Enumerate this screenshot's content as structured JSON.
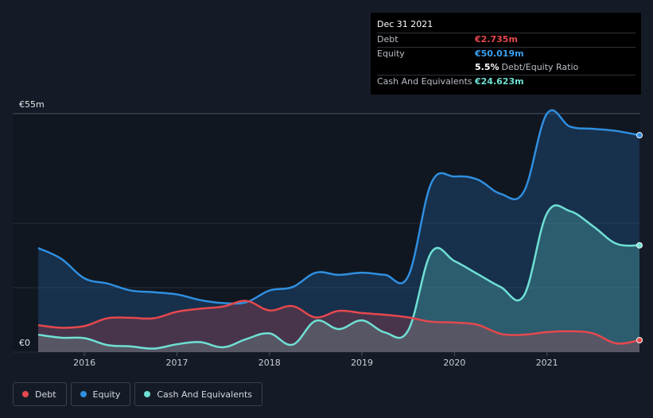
{
  "tooltip": {
    "date": "Dec 31 2021",
    "debt_label": "Debt",
    "debt_value": "€2.735m",
    "equity_label": "Equity",
    "equity_value": "€50.019m",
    "ratio_value": "5.5%",
    "ratio_label": "Debt/Equity Ratio",
    "cash_label": "Cash And Equivalents",
    "cash_value": "€24.623m"
  },
  "colors": {
    "debt": "#e5484d",
    "equity": "#2f8fe0",
    "cash": "#6fe0d4",
    "debt_value": "#e5484d",
    "equity_value": "#3aa0f0",
    "cash_value": "#6fe0d4"
  },
  "legend": {
    "debt": "Debt",
    "equity": "Equity",
    "cash": "Cash And Equivalents"
  },
  "chart_data": {
    "type": "area",
    "y_top_label": "€55m",
    "y_bottom_label": "€0",
    "ylim": [
      0,
      55
    ],
    "xlim": [
      2015.5,
      2022.0
    ],
    "x_ticks": [
      2016,
      2017,
      2018,
      2019,
      2020,
      2021
    ],
    "x_tick_labels": [
      "2016",
      "2017",
      "2018",
      "2019",
      "2020",
      "2021"
    ],
    "grid": true,
    "legend_position": "bottom-left",
    "series": [
      {
        "name": "Equity",
        "x": [
          2015.5,
          2015.75,
          2016.0,
          2016.25,
          2016.5,
          2016.75,
          2017.0,
          2017.25,
          2017.5,
          2017.75,
          2018.0,
          2018.25,
          2018.5,
          2018.75,
          2019.0,
          2019.25,
          2019.5,
          2019.75,
          2020.0,
          2020.25,
          2020.5,
          2020.75,
          2021.0,
          2021.25,
          2021.5,
          2021.75,
          2022.0
        ],
        "values": [
          24.0,
          21.5,
          17.0,
          15.8,
          14.2,
          13.8,
          13.3,
          12.0,
          11.3,
          11.5,
          14.2,
          15.0,
          18.3,
          17.8,
          18.3,
          17.8,
          17.5,
          39.0,
          40.5,
          39.8,
          36.5,
          37.0,
          55.0,
          52.0,
          51.5,
          51.0,
          50.019
        ]
      },
      {
        "name": "Cash And Equivalents",
        "x": [
          2015.5,
          2015.75,
          2016.0,
          2016.25,
          2016.5,
          2016.75,
          2017.0,
          2017.25,
          2017.5,
          2017.75,
          2018.0,
          2018.25,
          2018.5,
          2018.75,
          2019.0,
          2019.25,
          2019.5,
          2019.75,
          2020.0,
          2020.25,
          2020.5,
          2020.75,
          2021.0,
          2021.25,
          2021.5,
          2021.75,
          2022.0
        ],
        "values": [
          4.0,
          3.3,
          3.2,
          1.6,
          1.3,
          0.8,
          1.8,
          2.3,
          1.1,
          3.0,
          4.3,
          1.7,
          7.2,
          5.3,
          7.3,
          4.5,
          5.0,
          23.0,
          21.0,
          18.0,
          15.0,
          13.0,
          32.0,
          32.5,
          29.0,
          25.0,
          24.623
        ]
      },
      {
        "name": "Debt",
        "x": [
          2015.5,
          2015.75,
          2016.0,
          2016.25,
          2016.5,
          2016.75,
          2017.0,
          2017.25,
          2017.5,
          2017.75,
          2018.0,
          2018.25,
          2018.5,
          2018.75,
          2019.0,
          2019.25,
          2019.5,
          2019.75,
          2020.0,
          2020.25,
          2020.5,
          2020.75,
          2021.0,
          2021.25,
          2021.5,
          2021.75,
          2022.0
        ],
        "values": [
          6.2,
          5.6,
          6.0,
          7.8,
          7.9,
          7.8,
          9.3,
          10.0,
          10.5,
          11.8,
          9.6,
          10.6,
          8.0,
          9.5,
          9.0,
          8.6,
          8.0,
          7.0,
          6.8,
          6.3,
          4.2,
          4.0,
          4.6,
          4.8,
          4.3,
          2.0,
          2.735
        ]
      }
    ]
  }
}
